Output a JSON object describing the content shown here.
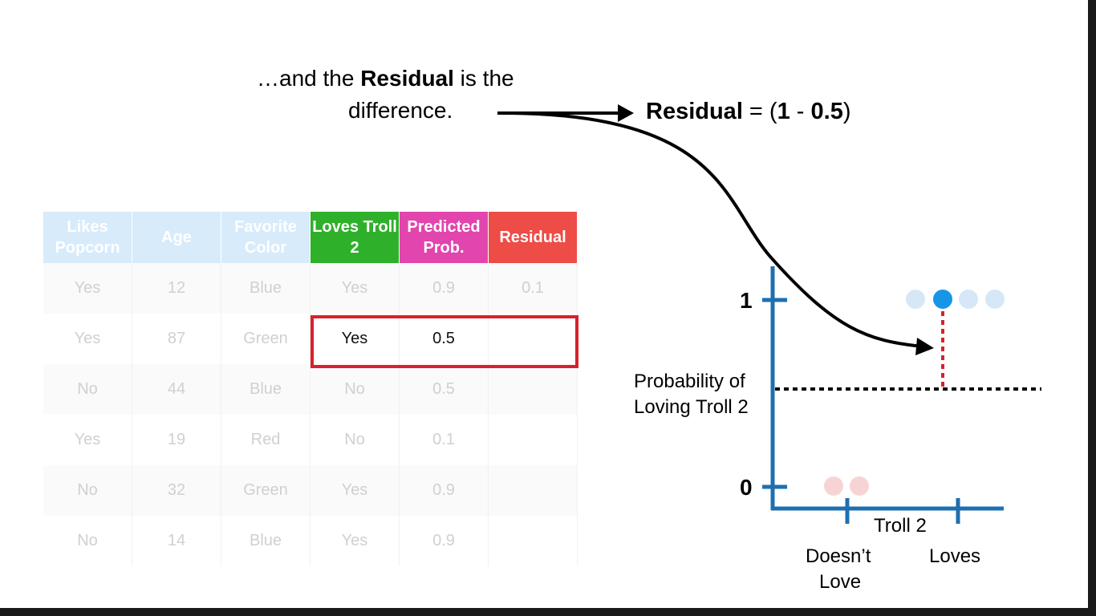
{
  "caption": {
    "line1_pre": "…and the ",
    "line1_bold": "Residual",
    "line1_post": " is the",
    "line2": "difference."
  },
  "formula": {
    "label": "Residual",
    "equals": " = (",
    "observed": "1",
    "minus": " - ",
    "predicted": "0.5",
    "close": ")"
  },
  "table": {
    "headers": [
      {
        "text": "Likes Popcorn",
        "color": "#d7ebfb"
      },
      {
        "text": "Age",
        "color": "#d7ebfb"
      },
      {
        "text": "Favorite Color",
        "color": "#d7ebfb"
      },
      {
        "text": "Loves Troll 2",
        "color": "#2fb02a"
      },
      {
        "text": "Predicted Prob.",
        "color": "#e245ad"
      },
      {
        "text": "Residual",
        "color": "#ee4c46"
      }
    ],
    "rows": [
      [
        "Yes",
        "12",
        "Blue",
        "Yes",
        "0.9",
        "0.1"
      ],
      [
        "Yes",
        "87",
        "Green",
        "Yes",
        "0.5",
        ""
      ],
      [
        "No",
        "44",
        "Blue",
        "No",
        "0.5",
        ""
      ],
      [
        "Yes",
        "19",
        "Red",
        "No",
        "0.1",
        ""
      ],
      [
        "No",
        "32",
        "Green",
        "Yes",
        "0.9",
        ""
      ],
      [
        "No",
        "14",
        "Blue",
        "Yes",
        "0.9",
        ""
      ]
    ],
    "highlighted_row": 1
  },
  "graph": {
    "y_tick_1": "1",
    "y_tick_0": "0",
    "y_axis_label_line1": "Probability of",
    "y_axis_label_line2": "Loving Troll 2",
    "x_axis_label": "Troll 2",
    "x_cat_left_line1": "Doesn’t",
    "x_cat_left_line2": "Love",
    "x_cat_right": "Loves",
    "predicted_level": 0.5,
    "axis_color": "#1f6fb0",
    "highlight_point_color": "#1796e8",
    "faded_point_color": "#d6e8f7",
    "faded_zero_point_color": "#f7d4d4",
    "residual_color": "#d8212c"
  }
}
